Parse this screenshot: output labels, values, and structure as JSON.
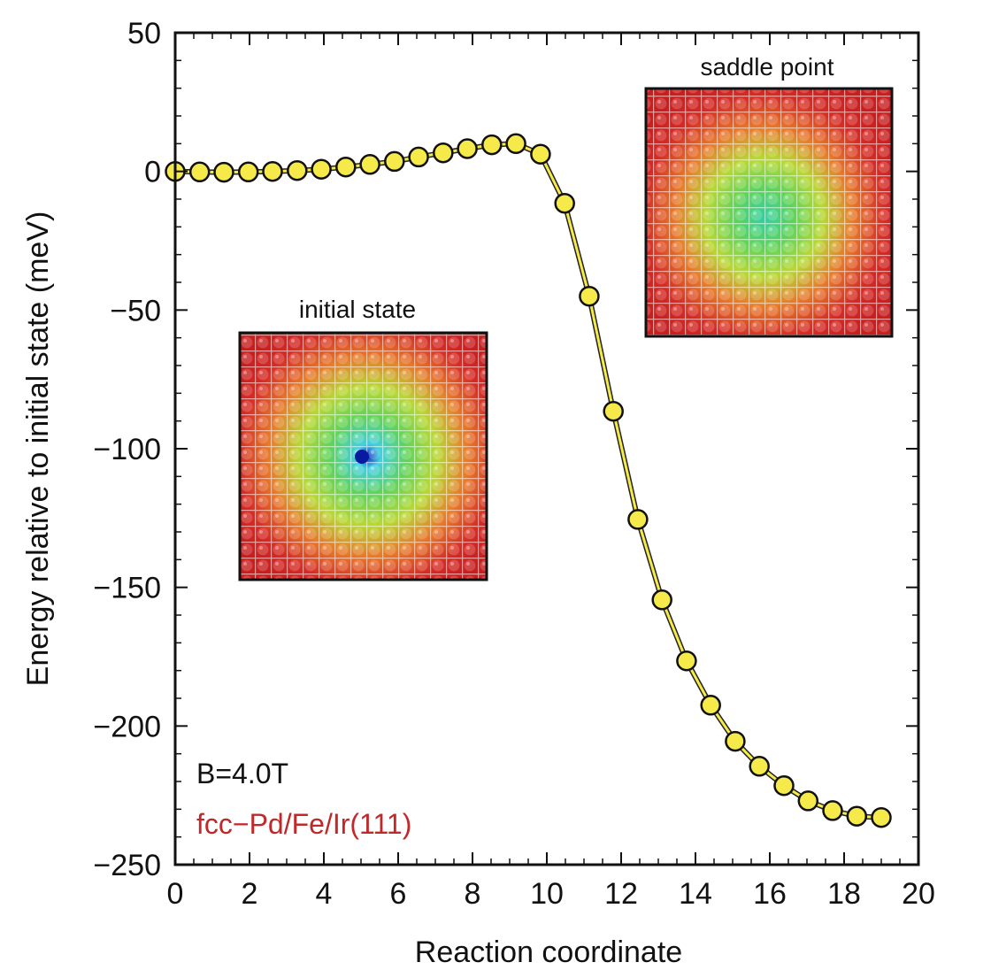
{
  "chart_data": {
    "type": "line",
    "title": "",
    "xlabel": "Reaction coordinate",
    "ylabel": "Energy relative to initial state (meV)",
    "xlim": [
      0,
      20
    ],
    "ylim": [
      -250,
      50
    ],
    "xticks": [
      0,
      2,
      4,
      6,
      8,
      10,
      12,
      14,
      16,
      18,
      20
    ],
    "yticks": [
      50,
      0,
      -50,
      -100,
      -150,
      -200,
      -250
    ],
    "xtick_labels": [
      "0",
      "2",
      "4",
      "6",
      "8",
      "10",
      "12",
      "14",
      "16",
      "18",
      "20"
    ],
    "ytick_labels": [
      "50",
      "0",
      "−50",
      "−100",
      "−150",
      "−200",
      "−250"
    ],
    "grid": false,
    "series": [
      {
        "marker": "circle",
        "color": "#f5ea4a",
        "line_color": "#b8ad1e",
        "x": [
          0,
          0.66,
          1.31,
          1.97,
          2.62,
          3.28,
          3.93,
          4.59,
          5.24,
          5.9,
          6.55,
          7.21,
          7.86,
          8.52,
          9.17,
          9.83,
          10.48,
          11.14,
          11.79,
          12.45,
          13.1,
          13.76,
          14.41,
          15.07,
          15.72,
          16.38,
          17.03,
          17.69,
          18.34,
          19.0
        ],
        "y": [
          0,
          -0.2,
          -0.3,
          -0.2,
          0,
          0.3,
          0.8,
          1.6,
          2.5,
          3.6,
          5.2,
          6.7,
          8.2,
          9.6,
          10,
          6.2,
          -11.5,
          -45,
          -86.5,
          -125.5,
          -154.5,
          -176.5,
          -192.5,
          -205.5,
          -214.5,
          -221.5,
          -227,
          -230.5,
          -232.5,
          -233
        ]
      }
    ],
    "annotations": {
      "field": "B=4.0T",
      "material": "fcc−Pd/Fe/Ir(111)",
      "material_color": "#c0282a",
      "inset_initial_label": "initial state",
      "inset_saddle_label": "saddle point"
    }
  }
}
